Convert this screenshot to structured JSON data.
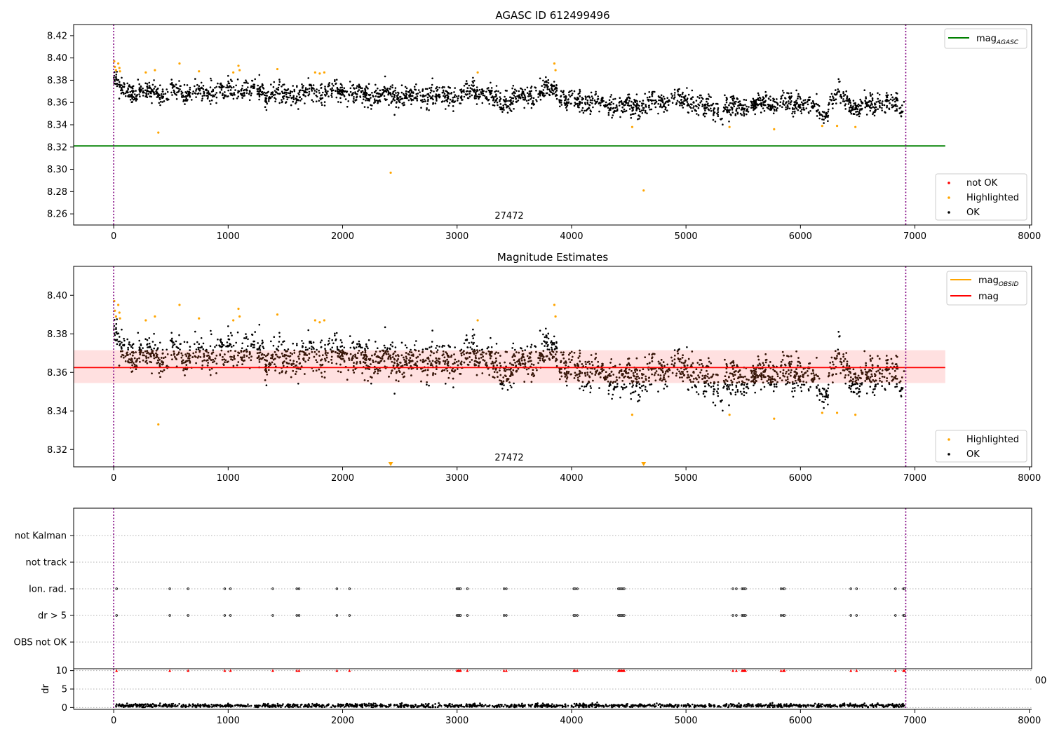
{
  "figure": {
    "background": "#ffffff"
  },
  "chart_data": [
    {
      "type": "scatter",
      "title": "AGASC ID 612499496",
      "xlim": [
        -350,
        8020
      ],
      "ylim": [
        8.25,
        8.43
      ],
      "x_ticks": [
        0,
        1000,
        2000,
        3000,
        4000,
        5000,
        6000,
        7000,
        8000
      ],
      "y_ticks": [
        8.26,
        8.28,
        8.3,
        8.32,
        8.34,
        8.36,
        8.38,
        8.4,
        8.42
      ],
      "y_decimals": 2,
      "annotation": "27472",
      "vlines": [
        0,
        6920
      ],
      "hline": {
        "label": "mag_AGASC",
        "y": 8.321,
        "x_range": [
          -350,
          7265
        ],
        "color": "#008000"
      },
      "series": [
        {
          "name": "not OK",
          "color": "#ff0000"
        },
        {
          "name": "Highlighted",
          "color": "#ffa500"
        },
        {
          "name": "OK",
          "color": "#000000"
        }
      ],
      "ok_trend": {
        "x": [
          0,
          30,
          100,
          600,
          1100,
          1500,
          2000,
          2500,
          3000,
          3150,
          3400,
          3850,
          3950,
          4500,
          4900,
          5300,
          5700,
          6000,
          6200,
          6320,
          6500,
          6700,
          6910
        ],
        "y": [
          8.379,
          8.376,
          8.369,
          8.369,
          8.371,
          8.368,
          8.369,
          8.365,
          8.366,
          8.371,
          8.36,
          8.372,
          8.362,
          8.356,
          8.364,
          8.354,
          8.359,
          8.36,
          8.351,
          8.366,
          8.355,
          8.36,
          8.355
        ],
        "spread": 0.007,
        "count": 2600
      },
      "highlighted_points": [
        [
          5,
          8.397
        ],
        [
          10,
          8.392
        ],
        [
          20,
          8.389
        ],
        [
          40,
          8.395
        ],
        [
          50,
          8.391
        ],
        [
          55,
          8.388
        ],
        [
          280,
          8.387
        ],
        [
          360,
          8.389
        ],
        [
          390,
          8.333
        ],
        [
          575,
          8.395
        ],
        [
          745,
          8.388
        ],
        [
          1045,
          8.387
        ],
        [
          1090,
          8.393
        ],
        [
          1100,
          8.389
        ],
        [
          1430,
          8.39
        ],
        [
          1760,
          8.387
        ],
        [
          1800,
          8.386
        ],
        [
          1840,
          8.387
        ],
        [
          2420,
          8.297
        ],
        [
          3180,
          8.387
        ],
        [
          3850,
          8.395
        ],
        [
          3860,
          8.389
        ],
        [
          4530,
          8.338
        ],
        [
          4630,
          8.281
        ],
        [
          5380,
          8.338
        ],
        [
          5770,
          8.336
        ],
        [
          6190,
          8.339
        ],
        [
          6320,
          8.339
        ],
        [
          6480,
          8.338
        ]
      ]
    },
    {
      "type": "scatter",
      "title": "Magnitude Estimates",
      "xlim": [
        -350,
        8020
      ],
      "ylim": [
        8.311,
        8.415
      ],
      "x_ticks": [
        0,
        1000,
        2000,
        3000,
        4000,
        5000,
        6000,
        7000,
        8000
      ],
      "y_ticks": [
        8.32,
        8.34,
        8.36,
        8.38,
        8.4
      ],
      "y_decimals": 2,
      "annotation": "27472",
      "vlines": [
        0,
        6920
      ],
      "mag_line": {
        "label": "mag",
        "y": 8.3625,
        "x_range": [
          -350,
          7265
        ],
        "color": "#ff0000"
      },
      "band": {
        "y": [
          8.3545,
          8.3715
        ],
        "x_range": [
          -350,
          7265
        ],
        "color": "#ffcccc"
      },
      "obsid_legend": {
        "label": "mag_OBSID",
        "color": "#ffa500"
      },
      "series": [
        {
          "name": "Highlighted",
          "color": "#ffa500"
        },
        {
          "name": "OK",
          "color": "#000000"
        }
      ],
      "lower_markers": [
        [
          2420,
          8.312
        ],
        [
          4630,
          8.312
        ]
      ],
      "highlighted_points": [
        [
          5,
          8.397
        ],
        [
          10,
          8.392
        ],
        [
          20,
          8.389
        ],
        [
          40,
          8.395
        ],
        [
          50,
          8.391
        ],
        [
          55,
          8.388
        ],
        [
          280,
          8.387
        ],
        [
          360,
          8.389
        ],
        [
          390,
          8.333
        ],
        [
          575,
          8.395
        ],
        [
          745,
          8.388
        ],
        [
          1045,
          8.387
        ],
        [
          1090,
          8.393
        ],
        [
          1100,
          8.389
        ],
        [
          1430,
          8.39
        ],
        [
          1760,
          8.387
        ],
        [
          1800,
          8.386
        ],
        [
          1840,
          8.387
        ],
        [
          3180,
          8.387
        ],
        [
          3850,
          8.395
        ],
        [
          3860,
          8.389
        ],
        [
          4530,
          8.338
        ],
        [
          5380,
          8.338
        ],
        [
          5770,
          8.336
        ],
        [
          6190,
          8.339
        ],
        [
          6320,
          8.339
        ],
        [
          6480,
          8.338
        ]
      ]
    },
    {
      "type": "scatter",
      "title": "",
      "xlim": [
        -350,
        8020
      ],
      "flag_rows": [
        "not Kalman",
        "not track",
        "Ion. rad.",
        "dr > 5",
        "OBS not OK"
      ],
      "vlines": [
        0,
        6920
      ],
      "flag_events": {
        "Ion. rad.": [
          25,
          490,
          650,
          970,
          1020,
          1390,
          1600,
          1620,
          1950,
          2060,
          3000,
          3010,
          3020,
          3030,
          3090,
          3410,
          3430,
          4020,
          4030,
          4050,
          4410,
          4420,
          4430,
          4440,
          4450,
          4460,
          5410,
          5440,
          5490,
          5500,
          5510,
          5520,
          5830,
          5850,
          5860,
          6440,
          6490,
          6830,
          6900,
          6910
        ],
        "dr > 5": [
          25,
          490,
          650,
          970,
          1020,
          1390,
          1600,
          1620,
          1950,
          2060,
          3000,
          3010,
          3020,
          3030,
          3090,
          3410,
          3430,
          4020,
          4030,
          4050,
          4410,
          4420,
          4430,
          4440,
          4450,
          4460,
          5410,
          5440,
          5490,
          5500,
          5510,
          5520,
          5830,
          5850,
          5860,
          6440,
          6490,
          6830,
          6900,
          6910
        ]
      }
    },
    {
      "type": "scatter",
      "ylabel": "dr",
      "xlim": [
        -350,
        8020
      ],
      "ylim": [
        -0.5,
        10.5
      ],
      "x_ticks": [
        0,
        1000,
        2000,
        3000,
        4000,
        5000,
        6000,
        7000,
        8000
      ],
      "y_ticks": [
        0,
        5,
        10
      ],
      "y_decimals": 0,
      "vlines": [
        0,
        6920
      ],
      "overflow_tick_label": "00",
      "dr_baseline": {
        "mean": 0.5,
        "spread": 0.25,
        "count": 1400
      },
      "clipped_points": [
        25,
        490,
        650,
        970,
        1020,
        1390,
        1600,
        1620,
        1950,
        2060,
        3000,
        3010,
        3020,
        3030,
        3090,
        3410,
        3430,
        4020,
        4030,
        4050,
        4410,
        4420,
        4430,
        4440,
        4450,
        4460,
        5410,
        5440,
        5490,
        5500,
        5510,
        5520,
        5830,
        5850,
        5860,
        6440,
        6490,
        6830,
        6900,
        6910
      ],
      "clipped_y": 10,
      "series": [
        {
          "name": "dr",
          "color": "#000000"
        },
        {
          "name": "dr > 5",
          "color": "#ff0000"
        }
      ]
    }
  ]
}
